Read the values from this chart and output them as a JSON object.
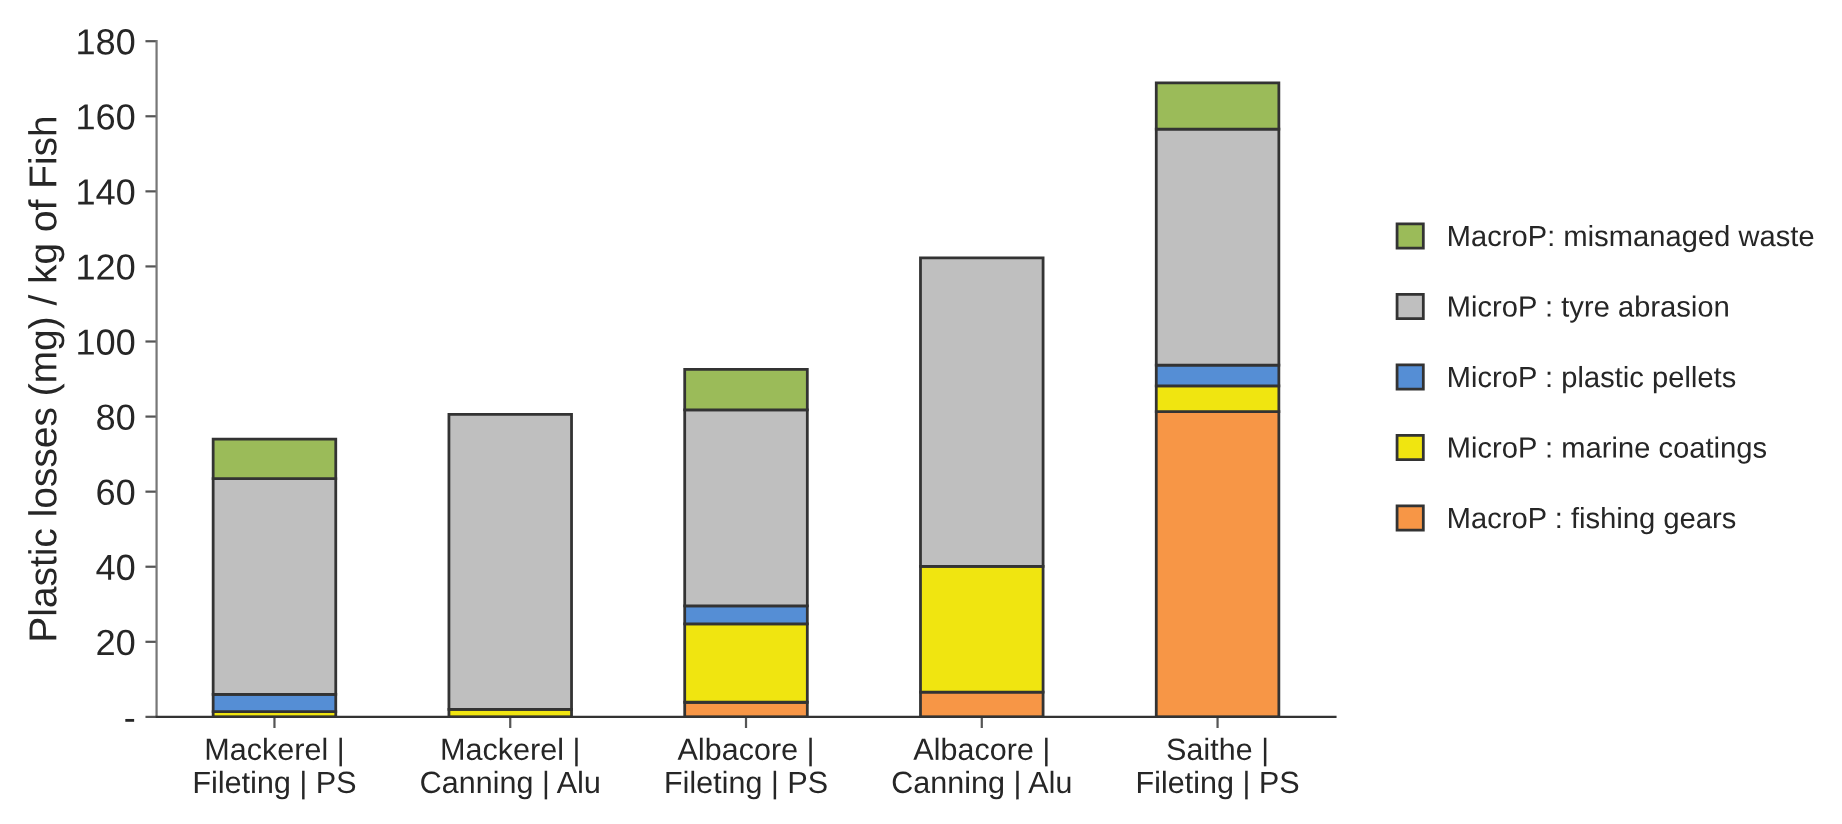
{
  "chart_data": {
    "type": "bar",
    "stacked": true,
    "ylabel": "Plastic losses (mg) / kg of Fish",
    "categories": [
      "Mackerel |\nFileting | PS",
      "Mackerel |\nCanning | Alu",
      "Albacore |\nFileting | PS",
      "Albacore |\nCanning | Alu",
      "Saithe |\nFileting | PS"
    ],
    "series": [
      {
        "name": "MacroP : fishing gears",
        "color": "#f79646",
        "values": [
          null,
          null,
          3.9,
          6.6,
          81.3
        ]
      },
      {
        "name": "MicroP : marine coatings",
        "color": "#f0e510",
        "values": [
          1.4,
          2,
          20.9,
          33.5,
          6.9
        ]
      },
      {
        "name": "MicroP : plastic pellets",
        "color": "#558ed5",
        "values": [
          4.6,
          null,
          4.8,
          null,
          5.5
        ]
      },
      {
        "name": "MicroP : tyre abrasion",
        "color": "#bfbfbf",
        "values": [
          57.5,
          78.6,
          52.2,
          82.2,
          62.9
        ]
      },
      {
        "name": "MacroP: mismanaged waste",
        "color": "#9bbb59",
        "values": [
          10.5,
          null,
          10.8,
          null,
          12.3
        ]
      }
    ],
    "ylim": [
      0,
      180
    ],
    "yticks": [
      {
        "value": 0,
        "label": "-"
      },
      20,
      40,
      60,
      80,
      100,
      120,
      140,
      160,
      180
    ],
    "grid": false,
    "legend": "right"
  }
}
